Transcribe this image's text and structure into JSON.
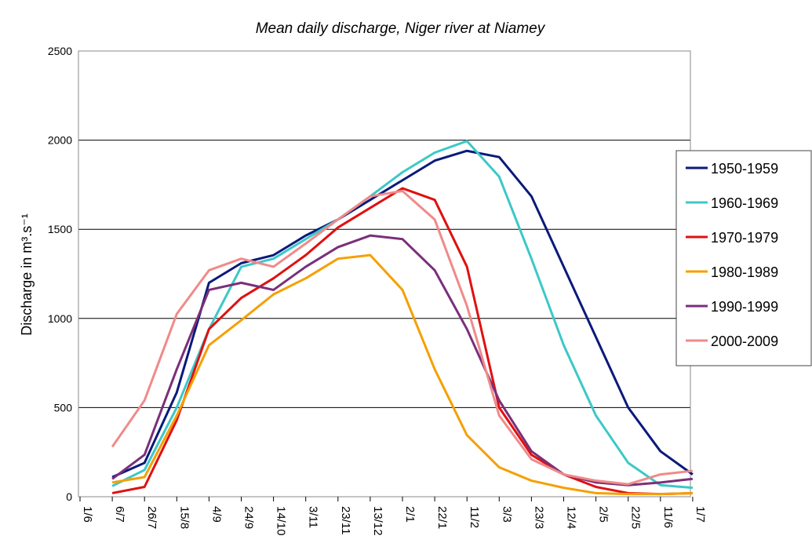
{
  "chart_data": {
    "type": "line",
    "title": "Mean daily discharge, Niger river at Niamey",
    "y_label": "Discharge in m³.s⁻¹",
    "categories": [
      "1/6",
      "6/7",
      "26/7",
      "15/8",
      "4/9",
      "24/9",
      "14/10",
      "3/11",
      "23/11",
      "13/12",
      "2/1",
      "22/1",
      "11/2",
      "3/3",
      "23/3",
      "12/4",
      "2/5",
      "22/5",
      "11/6",
      "1/7"
    ],
    "series": [
      {
        "name": "1950-1959",
        "color": "#0a1a7a",
        "values": [
          null,
          110,
          190,
          585,
          1200,
          1310,
          1355,
          1465,
          1555,
          1665,
          1775,
          1885,
          1940,
          1905,
          1685,
          1290,
          895,
          500,
          255,
          125
        ]
      },
      {
        "name": "1960-1969",
        "color": "#3cc8c8",
        "values": [
          null,
          60,
          150,
          500,
          940,
          1290,
          1335,
          1445,
          1555,
          1685,
          1820,
          1930,
          1995,
          1795,
          1335,
          850,
          455,
          190,
          65,
          50
        ]
      },
      {
        "name": "1970-1979",
        "color": "#e01010",
        "values": [
          null,
          20,
          55,
          430,
          940,
          1115,
          1225,
          1355,
          1510,
          1620,
          1730,
          1665,
          1290,
          500,
          235,
          125,
          55,
          20,
          15,
          20
        ]
      },
      {
        "name": "1980-1989",
        "color": "#f5a000",
        "values": [
          null,
          80,
          110,
          455,
          850,
          990,
          1135,
          1225,
          1335,
          1355,
          1160,
          715,
          345,
          165,
          90,
          50,
          20,
          15,
          15,
          20
        ]
      },
      {
        "name": "1990-1999",
        "color": "#7a2f7a",
        "values": [
          null,
          100,
          235,
          715,
          1160,
          1200,
          1160,
          1290,
          1400,
          1465,
          1445,
          1270,
          940,
          540,
          255,
          125,
          80,
          65,
          80,
          100
        ]
      },
      {
        "name": "2000-2009",
        "color": "#f08a8a",
        "values": [
          null,
          280,
          540,
          1025,
          1270,
          1335,
          1290,
          1420,
          1555,
          1685,
          1715,
          1555,
          1070,
          455,
          210,
          125,
          90,
          70,
          125,
          145
        ]
      }
    ],
    "ylim": [
      0,
      2500
    ],
    "yticks": [
      0,
      500,
      1000,
      1500,
      2000,
      2500
    ],
    "grid": true,
    "legend": "right"
  }
}
